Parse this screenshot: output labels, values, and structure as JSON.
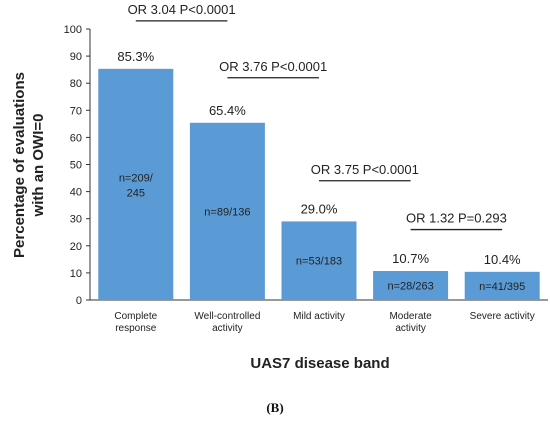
{
  "chart_data": {
    "type": "bar",
    "ylabel": [
      "Percentage of evaluations",
      "with an OWI=0"
    ],
    "xlabel": "UAS7 disease band",
    "ylim": [
      0,
      100
    ],
    "yticks": [
      0,
      10,
      20,
      30,
      40,
      50,
      60,
      70,
      80,
      90,
      100
    ],
    "grid": false,
    "bar_color": "#5b9bd5",
    "categories": [
      [
        "Complete",
        "response"
      ],
      [
        "Well-controlled",
        "activity"
      ],
      [
        "Mild activity"
      ],
      [
        "Moderate",
        "activity"
      ],
      [
        "Severe activity"
      ]
    ],
    "values": [
      85.3,
      65.4,
      29.0,
      10.7,
      10.4
    ],
    "value_labels": [
      "85.3%",
      "65.4%",
      "29.0%",
      "10.7%",
      "10.4%"
    ],
    "n_labels": [
      [
        "n=209/",
        "245"
      ],
      [
        "n=89/136"
      ],
      [
        "n=53/183"
      ],
      [
        "n=28/263"
      ],
      [
        "n=41/395"
      ]
    ],
    "comparisons": [
      {
        "label": "OR 3.04 P<0.0001",
        "from": 0,
        "to": 1,
        "y": 103
      },
      {
        "label": "OR 3.76 P<0.0001",
        "from": 1,
        "to": 2,
        "y": 82
      },
      {
        "label": "OR 3.75 P<0.0001",
        "from": 2,
        "to": 3,
        "y": 44
      },
      {
        "label": "OR 1.32 P=0.293",
        "from": 3,
        "to": 4,
        "y": 26
      }
    ],
    "panel_label": "(B)"
  }
}
